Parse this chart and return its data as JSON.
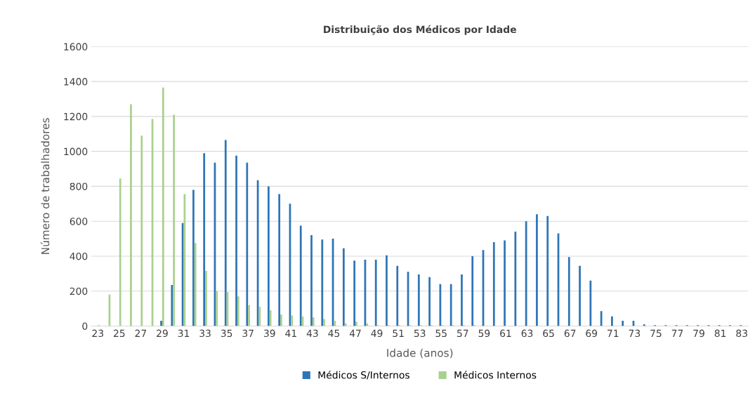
{
  "chart_data": {
    "type": "bar",
    "title": "Distribuição dos Médicos por Idade",
    "xlabel": "Idade (anos)",
    "ylabel": "Número de trabalhadores",
    "categories": [
      "23",
      null,
      "25",
      null,
      "27",
      null,
      "29",
      null,
      "31",
      null,
      "33",
      null,
      "35",
      null,
      "37",
      null,
      "39",
      null,
      "41",
      null,
      "43",
      null,
      "45",
      null,
      "47",
      null,
      "49",
      null,
      "51",
      null,
      "53",
      null,
      "55",
      null,
      "57",
      null,
      "59",
      null,
      "61",
      null,
      "63",
      null,
      "65",
      null,
      "67",
      null,
      "69",
      null,
      "71",
      null,
      "73",
      null,
      "75",
      null,
      "77",
      null,
      "79",
      null,
      "81",
      null,
      "83"
    ],
    "series": [
      {
        "name": "Médicos S/Internos",
        "color": "#2e75b6",
        "values": [
          0,
          0,
          0,
          0,
          0,
          0,
          30,
          235,
          590,
          780,
          990,
          935,
          1065,
          975,
          935,
          835,
          800,
          755,
          700,
          575,
          520,
          495,
          500,
          445,
          375,
          380,
          380,
          405,
          345,
          310,
          295,
          280,
          240,
          240,
          295,
          400,
          435,
          480,
          490,
          540,
          600,
          640,
          630,
          530,
          395,
          345,
          260,
          85,
          55,
          30,
          30,
          10,
          5,
          5,
          5,
          5,
          5,
          5,
          5,
          5,
          5
        ]
      },
      {
        "name": "Médicos Internos",
        "color": "#a9d18e",
        "values": [
          5,
          180,
          845,
          1270,
          1090,
          1185,
          1365,
          1210,
          755,
          475,
          315,
          200,
          195,
          170,
          120,
          110,
          90,
          65,
          60,
          55,
          50,
          40,
          30,
          15,
          25,
          15,
          5,
          5,
          5,
          5,
          5,
          5,
          5,
          5,
          5,
          5,
          0,
          0,
          0,
          0,
          0,
          0,
          0,
          0,
          0,
          0,
          0,
          0,
          0,
          0,
          0,
          0,
          0,
          0,
          0,
          0,
          0,
          0,
          0,
          0,
          0
        ]
      }
    ],
    "ylim": [
      0,
      1600
    ],
    "yticks": [
      0,
      200,
      400,
      600,
      800,
      1000,
      1200,
      1400,
      1600
    ],
    "grid": "y",
    "legend": "bottom"
  }
}
